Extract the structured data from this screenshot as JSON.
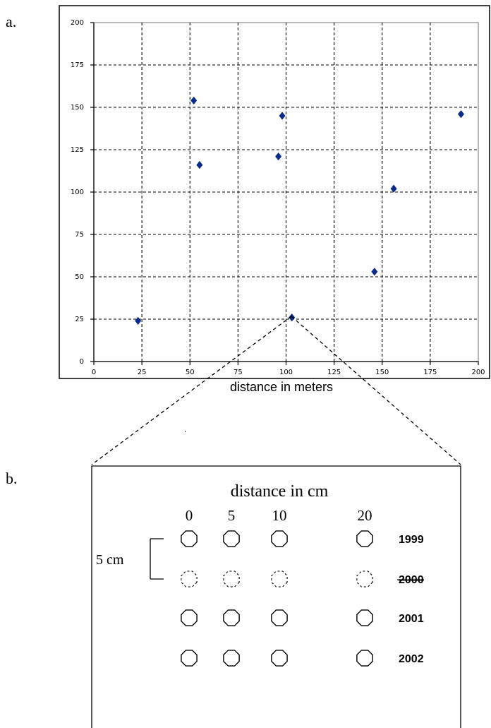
{
  "panel_a_label": "a.",
  "panel_b_label": "b.",
  "chart_data": {
    "type": "scatter",
    "x": [
      23,
      52,
      55,
      96,
      98,
      103,
      146,
      156,
      191
    ],
    "y": [
      24,
      154,
      116,
      121,
      145,
      26,
      53,
      102,
      146
    ],
    "xlim": [
      0,
      200
    ],
    "ylim": [
      0,
      200
    ],
    "xticks": [
      0,
      25,
      50,
      75,
      100,
      125,
      150,
      175,
      200
    ],
    "yticks": [
      0,
      25,
      50,
      75,
      100,
      125,
      150,
      175,
      200
    ],
    "xlabel": "distance in meters",
    "ylabel": "",
    "title": "",
    "grid": true,
    "marker_color": "#0a2a8c",
    "grid_style": "dashed"
  },
  "panel_b": {
    "title": "distance in cm",
    "columns": [
      "0",
      "5",
      "10",
      "20"
    ],
    "years": [
      "1999",
      "2000",
      "2001",
      "2002"
    ],
    "struck_year": "2000",
    "dashed_row_year": "2000",
    "scale_label": "5 cm"
  }
}
